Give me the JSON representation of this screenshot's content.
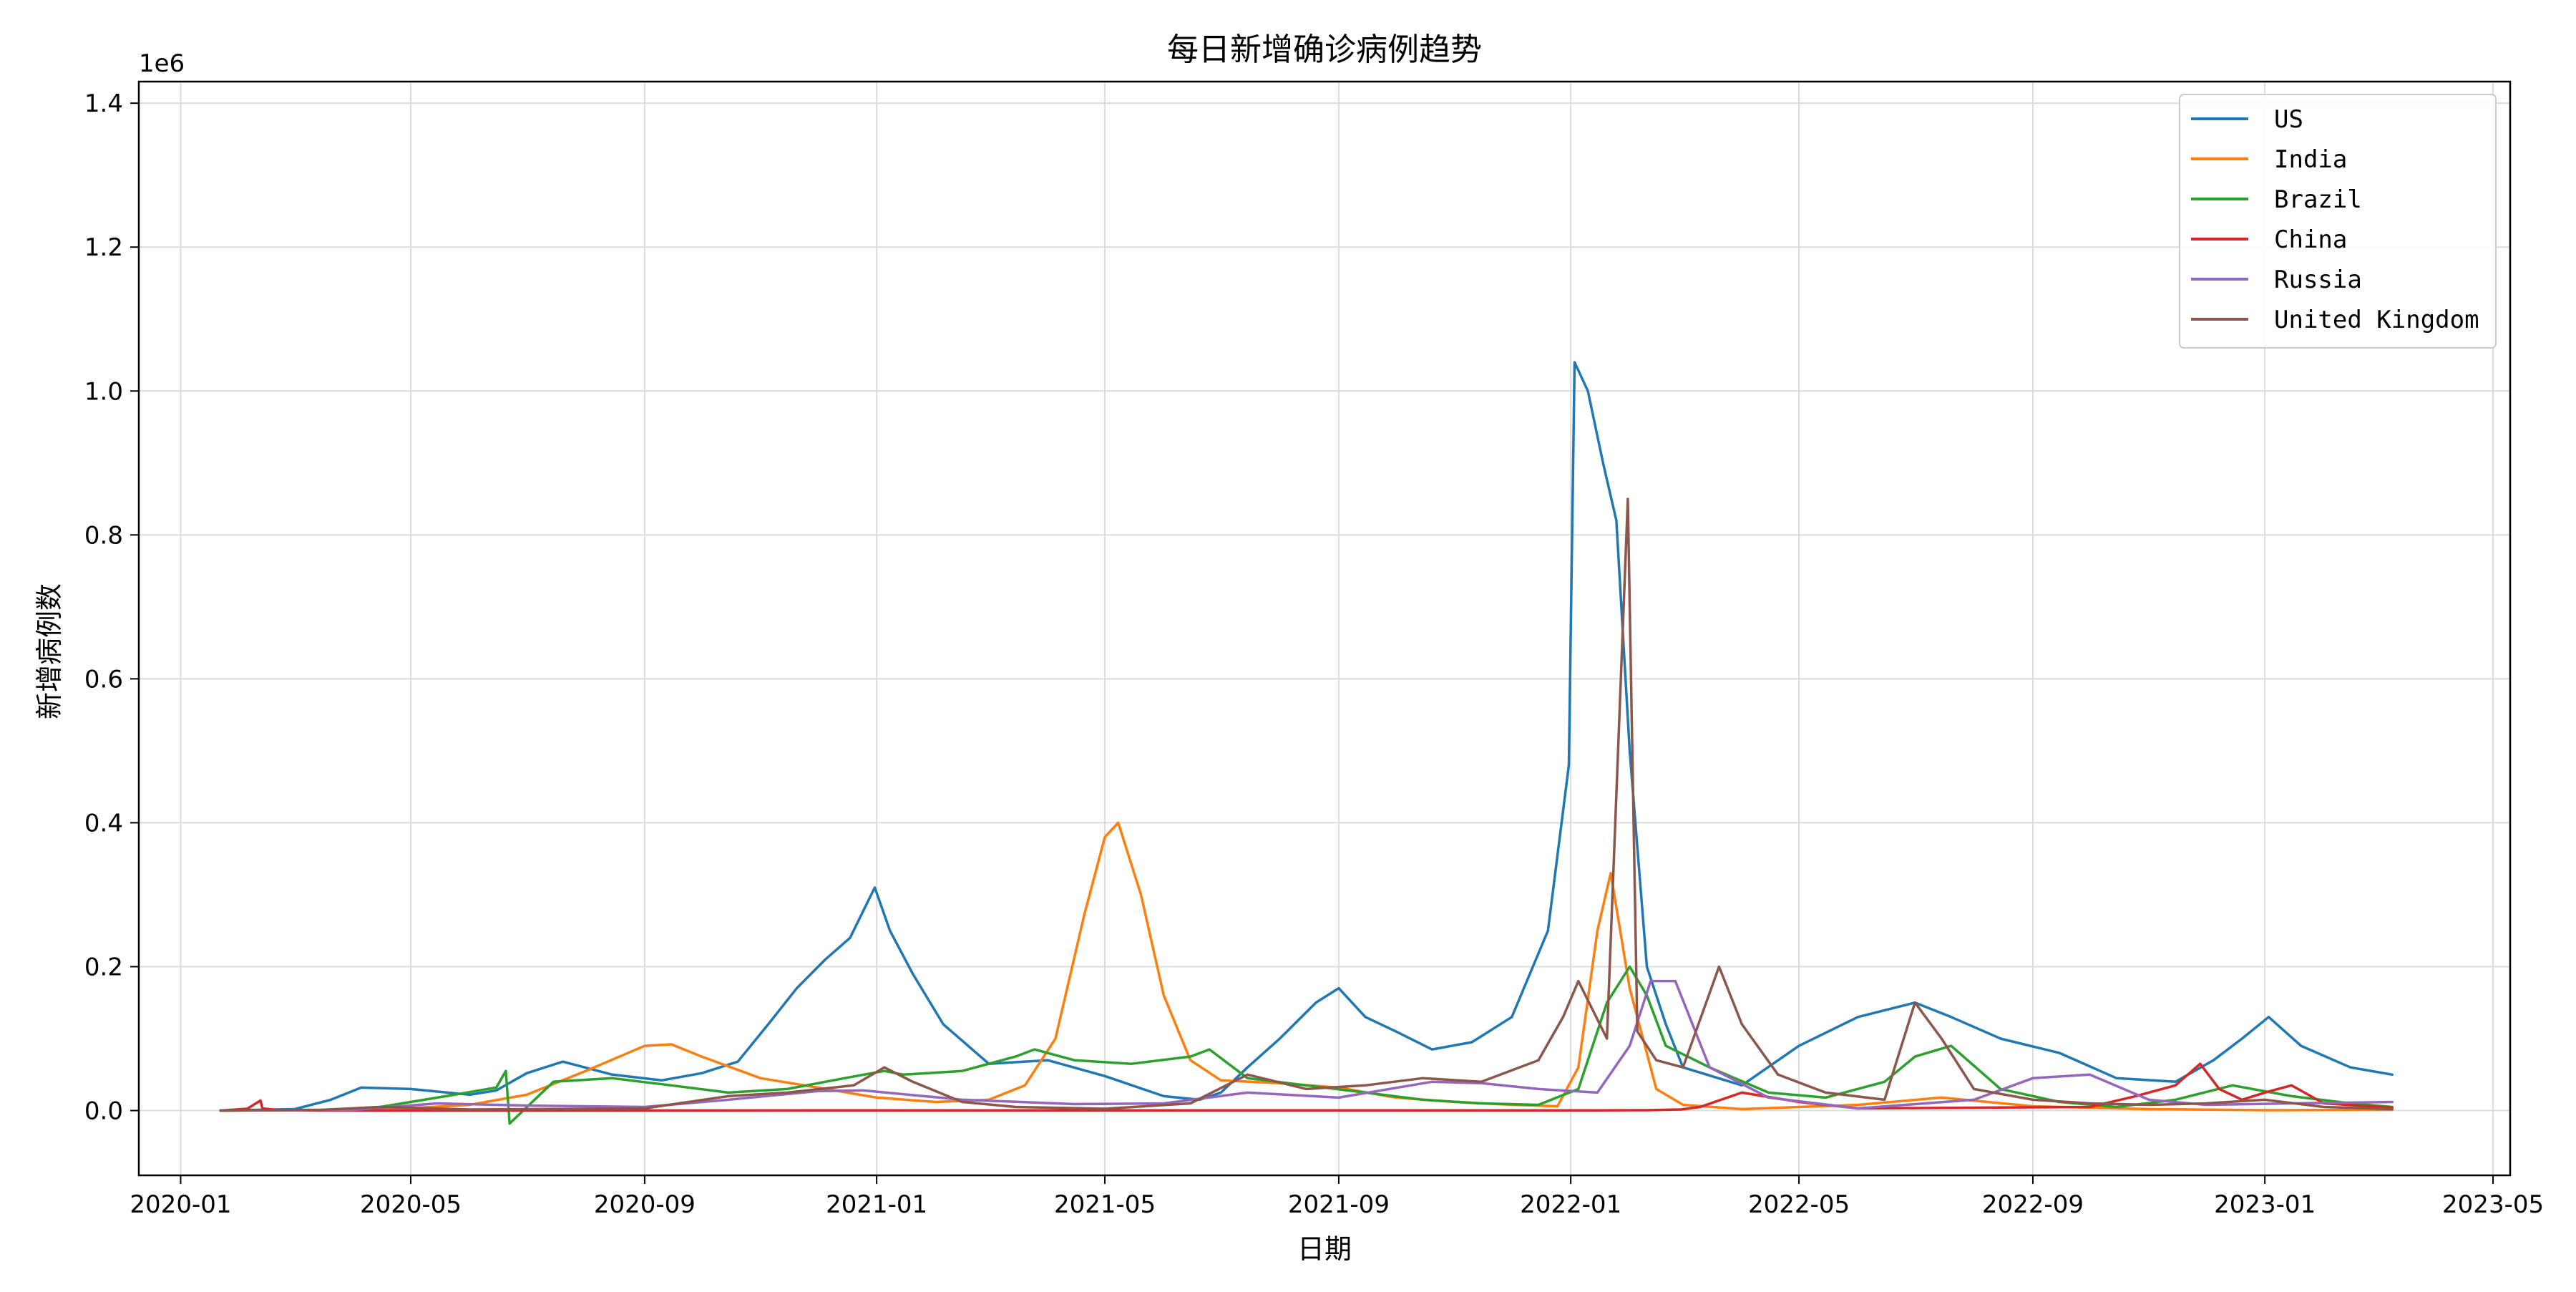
{
  "chart_data": {
    "type": "line",
    "title": "每日新增确诊病例趋势",
    "xlabel": "日期",
    "ylabel": "新增病例数",
    "y_multiplier_label": "1e6",
    "y_unit_scale": 1000000,
    "ylim": [
      -90000,
      1430000
    ],
    "yticks": [
      0,
      200000,
      400000,
      600000,
      800000,
      1000000,
      1200000,
      1400000
    ],
    "ytick_labels": [
      "0.0",
      "0.2",
      "0.4",
      "0.6",
      "0.8",
      "1.0",
      "1.2",
      "1.4"
    ],
    "xlim": [
      "2019-12-10",
      "2023-05-10"
    ],
    "xticks": [
      "2020-01-01",
      "2020-05-01",
      "2020-09-01",
      "2021-01-01",
      "2021-05-01",
      "2021-09-01",
      "2022-01-01",
      "2022-05-01",
      "2022-09-01",
      "2023-01-01",
      "2023-05-01"
    ],
    "xtick_labels": [
      "2020-01",
      "2020-05",
      "2020-09",
      "2021-01",
      "2021-05",
      "2021-09",
      "2022-01",
      "2022-05",
      "2022-09",
      "2023-01",
      "2023-05"
    ],
    "grid": true,
    "legend_position": "top-right",
    "series": [
      {
        "name": "US",
        "color": "#1f77b4",
        "x": [
          "2020-01-22",
          "2020-03-01",
          "2020-03-20",
          "2020-04-05",
          "2020-05-01",
          "2020-06-01",
          "2020-06-15",
          "2020-07-01",
          "2020-07-20",
          "2020-08-15",
          "2020-09-10",
          "2020-10-01",
          "2020-10-20",
          "2020-11-05",
          "2020-11-20",
          "2020-12-05",
          "2020-12-18",
          "2020-12-31",
          "2021-01-08",
          "2021-01-20",
          "2021-02-05",
          "2021-03-01",
          "2021-04-01",
          "2021-05-01",
          "2021-06-01",
          "2021-06-20",
          "2021-07-01",
          "2021-07-15",
          "2021-08-01",
          "2021-08-20",
          "2021-09-01",
          "2021-09-15",
          "2021-10-01",
          "2021-10-20",
          "2021-11-10",
          "2021-12-01",
          "2021-12-20",
          "2021-12-31",
          "2022-01-03",
          "2022-01-10",
          "2022-01-18",
          "2022-01-25",
          "2022-02-01",
          "2022-02-10",
          "2022-02-20",
          "2022-03-01",
          "2022-04-01",
          "2022-05-01",
          "2022-06-01",
          "2022-07-01",
          "2022-07-20",
          "2022-08-15",
          "2022-09-15",
          "2022-10-15",
          "2022-11-15",
          "2022-12-05",
          "2022-12-20",
          "2023-01-03",
          "2023-01-20",
          "2023-02-15",
          "2023-03-09"
        ],
        "values": [
          0,
          2000,
          15000,
          32000,
          30000,
          22000,
          28000,
          52000,
          68000,
          50000,
          42000,
          52000,
          68000,
          120000,
          170000,
          210000,
          240000,
          310000,
          250000,
          190000,
          120000,
          65000,
          70000,
          48000,
          20000,
          15000,
          25000,
          60000,
          100000,
          150000,
          170000,
          130000,
          110000,
          85000,
          95000,
          130000,
          250000,
          480000,
          1040000,
          1000000,
          900000,
          820000,
          500000,
          200000,
          120000,
          60000,
          35000,
          90000,
          130000,
          150000,
          130000,
          100000,
          80000,
          45000,
          40000,
          70000,
          100000,
          130000,
          90000,
          60000,
          50000
        ]
      },
      {
        "name": "India",
        "color": "#ff7f0e",
        "x": [
          "2020-01-22",
          "2020-04-15",
          "2020-06-01",
          "2020-07-01",
          "2020-08-01",
          "2020-09-01",
          "2020-09-15",
          "2020-10-01",
          "2020-11-01",
          "2020-12-01",
          "2021-01-01",
          "2021-02-01",
          "2021-03-01",
          "2021-03-20",
          "2021-04-05",
          "2021-04-20",
          "2021-05-01",
          "2021-05-08",
          "2021-05-20",
          "2021-06-01",
          "2021-06-15",
          "2021-07-01",
          "2021-08-01",
          "2021-09-01",
          "2021-10-01",
          "2021-11-01",
          "2021-12-01",
          "2021-12-25",
          "2022-01-05",
          "2022-01-15",
          "2022-01-22",
          "2022-02-01",
          "2022-02-15",
          "2022-03-01",
          "2022-04-01",
          "2022-06-01",
          "2022-07-15",
          "2022-09-01",
          "2022-11-01",
          "2023-01-01",
          "2023-03-09"
        ],
        "values": [
          0,
          1000,
          8000,
          22000,
          55000,
          90000,
          92000,
          75000,
          45000,
          32000,
          18000,
          12000,
          15000,
          35000,
          100000,
          270000,
          380000,
          400000,
          300000,
          160000,
          70000,
          42000,
          38000,
          32000,
          18000,
          12000,
          8000,
          6000,
          60000,
          250000,
          330000,
          170000,
          30000,
          8000,
          2000,
          8000,
          18000,
          6000,
          2000,
          500,
          1000
        ]
      },
      {
        "name": "Brazil",
        "color": "#2ca02c",
        "x": [
          "2020-01-22",
          "2020-03-20",
          "2020-04-15",
          "2020-05-15",
          "2020-06-15",
          "2020-06-20",
          "2020-06-22",
          "2020-07-15",
          "2020-08-15",
          "2020-09-15",
          "2020-10-15",
          "2020-11-15",
          "2020-12-15",
          "2021-01-05",
          "2021-01-15",
          "2021-02-15",
          "2021-03-15",
          "2021-03-25",
          "2021-04-15",
          "2021-05-15",
          "2021-06-15",
          "2021-06-25",
          "2021-07-15",
          "2021-08-15",
          "2021-09-15",
          "2021-10-15",
          "2021-11-15",
          "2021-12-15",
          "2022-01-05",
          "2022-01-20",
          "2022-02-01",
          "2022-02-10",
          "2022-02-20",
          "2022-03-15",
          "2022-04-15",
          "2022-05-15",
          "2022-06-15",
          "2022-07-01",
          "2022-07-20",
          "2022-08-15",
          "2022-09-15",
          "2022-10-15",
          "2022-11-15",
          "2022-12-15",
          "2023-01-15",
          "2023-02-15",
          "2023-03-09"
        ],
        "values": [
          0,
          1000,
          5000,
          18000,
          32000,
          55000,
          -18000,
          40000,
          45000,
          35000,
          25000,
          30000,
          45000,
          55000,
          50000,
          55000,
          75000,
          85000,
          70000,
          65000,
          75000,
          85000,
          45000,
          35000,
          25000,
          15000,
          10000,
          8000,
          30000,
          150000,
          200000,
          160000,
          90000,
          60000,
          25000,
          18000,
          40000,
          75000,
          90000,
          30000,
          12000,
          5000,
          15000,
          35000,
          20000,
          10000,
          5000
        ]
      },
      {
        "name": "China",
        "color": "#d62728",
        "x": [
          "2020-01-22",
          "2020-02-05",
          "2020-02-12",
          "2020-02-13",
          "2020-02-20",
          "2020-03-15",
          "2020-06-01",
          "2020-12-01",
          "2021-06-01",
          "2021-12-01",
          "2022-01-15",
          "2022-02-10",
          "2022-02-28",
          "2022-03-10",
          "2022-04-01",
          "2022-05-01",
          "2022-06-01",
          "2022-08-01",
          "2022-10-01",
          "2022-10-25",
          "2022-11-15",
          "2022-11-28",
          "2022-12-08",
          "2022-12-20",
          "2023-01-01",
          "2023-01-15",
          "2023-02-01",
          "2023-03-09"
        ],
        "values": [
          0,
          2500,
          14000,
          3000,
          1000,
          50,
          100,
          200,
          300,
          200,
          300,
          500,
          1500,
          5000,
          25000,
          12000,
          3000,
          4000,
          5000,
          20000,
          35000,
          65000,
          30000,
          15000,
          25000,
          35000,
          10000,
          4000
        ]
      },
      {
        "name": "Russia",
        "color": "#9467bd",
        "x": [
          "2020-01-22",
          "2020-04-01",
          "2020-05-15",
          "2020-07-01",
          "2020-09-01",
          "2020-10-15",
          "2020-12-01",
          "2020-12-25",
          "2021-02-15",
          "2021-04-15",
          "2021-06-01",
          "2021-07-15",
          "2021-09-01",
          "2021-10-20",
          "2021-11-15",
          "2021-12-15",
          "2022-01-15",
          "2022-02-01",
          "2022-02-12",
          "2022-02-25",
          "2022-03-15",
          "2022-04-15",
          "2022-06-01",
          "2022-08-01",
          "2022-09-01",
          "2022-10-01",
          "2022-11-01",
          "2022-12-01",
          "2023-01-15",
          "2023-03-09"
        ],
        "values": [
          0,
          1000,
          10000,
          7000,
          5000,
          15000,
          27000,
          28000,
          15000,
          9000,
          10000,
          25000,
          18000,
          40000,
          38000,
          30000,
          25000,
          90000,
          180000,
          180000,
          60000,
          18000,
          3000,
          15000,
          45000,
          50000,
          15000,
          8000,
          10000,
          12000
        ]
      },
      {
        "name": "United Kingdom",
        "color": "#8c564b",
        "x": [
          "2020-01-22",
          "2020-03-15",
          "2020-04-15",
          "2020-06-01",
          "2020-09-01",
          "2020-10-15",
          "2020-11-15",
          "2020-12-20",
          "2021-01-05",
          "2021-01-20",
          "2021-02-15",
          "2021-03-15",
          "2021-05-01",
          "2021-06-15",
          "2021-07-15",
          "2021-08-15",
          "2021-09-15",
          "2021-10-15",
          "2021-11-15",
          "2021-12-15",
          "2021-12-28",
          "2022-01-05",
          "2022-01-20",
          "2022-01-31",
          "2022-02-05",
          "2022-02-15",
          "2022-03-01",
          "2022-03-20",
          "2022-04-01",
          "2022-04-20",
          "2022-05-15",
          "2022-06-15",
          "2022-07-01",
          "2022-07-15",
          "2022-08-01",
          "2022-09-01",
          "2022-10-01",
          "2022-11-01",
          "2022-12-01",
          "2023-01-01",
          "2023-02-01",
          "2023-03-09"
        ],
        "values": [
          0,
          1000,
          5000,
          1500,
          3000,
          20000,
          25000,
          35000,
          60000,
          40000,
          12000,
          5000,
          2500,
          10000,
          50000,
          30000,
          35000,
          45000,
          40000,
          70000,
          130000,
          180000,
          100000,
          850000,
          110000,
          70000,
          60000,
          200000,
          120000,
          50000,
          25000,
          15000,
          150000,
          100000,
          30000,
          15000,
          10000,
          8000,
          10000,
          15000,
          5000,
          2000
        ]
      }
    ]
  }
}
